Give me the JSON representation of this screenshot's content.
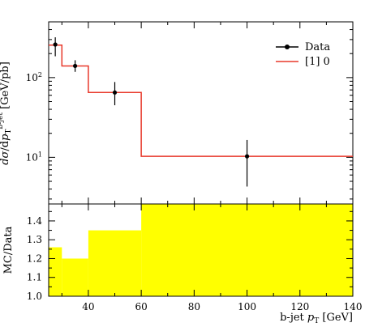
{
  "chart_data": [
    {
      "panel": "main",
      "type": "line",
      "title": "",
      "ylabel": "dσ/dp_T^{b-jet} [GeV/pb]",
      "yscale": "log",
      "xlim": [
        25,
        140
      ],
      "ylim": [
        2.6,
        500
      ],
      "yticks": [
        10,
        100
      ],
      "ytick_labels": [
        "10^1",
        "10^2"
      ],
      "legend_placement": "top-right",
      "series": [
        {
          "name": "Data",
          "kind": "points",
          "color": "#000000",
          "points": [
            {
              "x": 27.5,
              "y": 260,
              "yerr_lo": 185,
              "yerr_hi": 320
            },
            {
              "x": 35,
              "y": 140,
              "yerr_lo": 118,
              "yerr_hi": 165
            },
            {
              "x": 50,
              "y": 65,
              "yerr_lo": 45,
              "yerr_hi": 88
            },
            {
              "x": 100,
              "y": 10.3,
              "yerr_lo": 4.3,
              "yerr_hi": 16.5
            }
          ]
        },
        {
          "name": "[1] 0",
          "kind": "step",
          "color": "#e8382a",
          "bins": [
            {
              "x_lo": 25,
              "x_hi": 30,
              "y": 255
            },
            {
              "x_lo": 30,
              "x_hi": 40,
              "y": 140
            },
            {
              "x_lo": 40,
              "x_hi": 60,
              "y": 65
            },
            {
              "x_lo": 60,
              "x_hi": 140,
              "y": 10.3
            }
          ]
        }
      ]
    },
    {
      "panel": "ratio",
      "type": "area",
      "xlabel": "b-jet p_T [GeV]",
      "ylabel": "MC/Data",
      "xlim": [
        25,
        140
      ],
      "ylim": [
        1.0,
        1.49
      ],
      "xticks": [
        40,
        60,
        80,
        100,
        120,
        140
      ],
      "yticks": [
        1.0,
        1.1,
        1.2,
        1.3,
        1.4
      ],
      "band_color": "#ffff00",
      "band_bins": [
        {
          "x_lo": 25,
          "x_hi": 30,
          "y_lo": 1.0,
          "y_hi": 1.26
        },
        {
          "x_lo": 30,
          "x_hi": 40,
          "y_lo": 1.0,
          "y_hi": 1.2
        },
        {
          "x_lo": 40,
          "x_hi": 60,
          "y_lo": 1.0,
          "y_hi": 1.35
        },
        {
          "x_lo": 60,
          "x_hi": 140,
          "y_lo": 1.0,
          "y_hi": 1.49
        }
      ]
    }
  ]
}
